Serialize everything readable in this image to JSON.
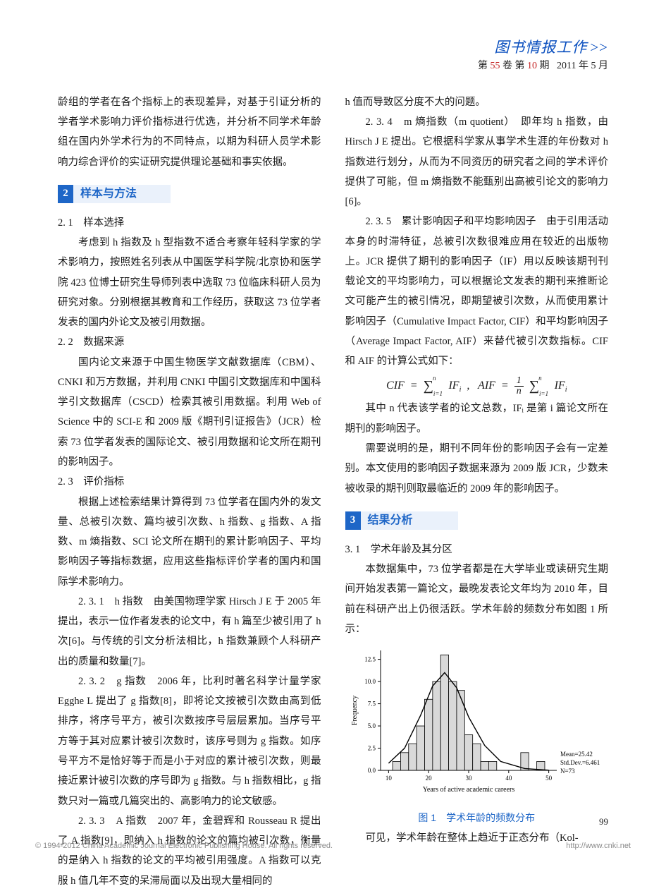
{
  "header": {
    "journal_title": "图书情报工作",
    "chevrons": ">>",
    "volume_label_pre": "第 ",
    "volume_num": "55",
    "volume_label_mid": " 卷  第 ",
    "issue_num": "10",
    "issue_label_post": " 期",
    "date": "2011 年 5 月"
  },
  "left": {
    "intro": "龄组的学者在各个指标上的表现差异，对基于引证分析的学者学术影响力评价指标进行优选，并分析不同学术年龄组在国内外学术行为的不同特点，以期为科研人员学术影响力综合评价的实证研究提供理论基础和事实依据。",
    "sec2_num": "2",
    "sec2_title": "样本与方法",
    "s21_head": "2. 1　样本选择",
    "s21_body": "考虑到 h 指数及 h 型指数不适合考察年轻科学家的学术影响力，按照姓名列表从中国医学科学院/北京协和医学院 423 位博士研究生导师列表中选取 73 位临床科研人员为研究对象。分别根据其教育和工作经历，获取这 73 位学者发表的国内外论文及被引用数据。",
    "s22_head": "2. 2　数据来源",
    "s22_body": "国内论文来源于中国生物医学文献数据库（CBM）、CNKI 和万方数据，并利用 CNKI 中国引文数据库和中国科学引文数据库（CSCD）检索其被引用数据。利用 Web of Science 中的 SCI-E 和 2009 版《期刊引证报告》（JCR）检索 73 位学者发表的国际论文、被引用数据和论文所在期刊的影响因子。",
    "s23_head": "2. 3　评价指标",
    "s23_body": "根据上述检索结果计算得到 73 位学者在国内外的发文量、总被引次数、篇均被引次数、h 指数、g 指数、A 指数、m 熵指数、SCI 论文所在期刊的累计影响因子、平均影响因子等指标数据，应用这些指标评价学者的国内和国际学术影响力。",
    "s231_head": "2. 3. 1　h 指数",
    "s231_body": "　由美国物理学家 Hirsch J E 于 2005 年提出，表示一位作者发表的论文中，有 h 篇至少被引用了 h 次[6]。与传统的引文分析法相比，h 指数兼顾个人科研产出的质量和数量[7]。",
    "s232_head": "2. 3. 2　g 指数",
    "s232_body": "　2006 年，比利时著名科学计量学家 Egghe L 提出了 g 指数[8]，即将论文按被引次数由高到低排序，将序号平方，被引次数按序号层层累加。当序号平方等于其对应累计被引次数时，该序号则为 g 指数。如序号平方不是恰好等于而是小于对应的累计被引次数，则最接近累计被引次数的序号即为 g 指数。与 h 指数相比，g 指数只对一篇或几篇突出的、高影响力的论文敏感。",
    "s233_head": "2. 3. 3　A 指数",
    "s233_body": "　2007 年，金碧辉和 Rousseau R 提出了 A 指数[9]，即纳入 h 指数的论文的篇均被引次数，衡量的是纳入 h 指数的论文的平均被引用强度。A 指数可以克服 h 值几年不变的呆滞局面以及出现大量相同的"
  },
  "right": {
    "top_line": "h 值而导致区分度不大的问题。",
    "s234_head": "2. 3. 4　m 熵指数（m quotient）",
    "s234_body": "　即年均 h 指数，由 Hirsch J E 提出。它根据科学家从事学术生涯的年份数对 h 指数进行划分，从而为不同资历的研究者之间的学术评价提供了可能，但 m 熵指数不能甄别出高被引论文的影响力[6]。",
    "s235_head": "2. 3. 5　累计影响因子和平均影响因子",
    "s235_body1": "　由于引用活动本身的时滞特征，总被引次数很难应用在较近的出版物上。JCR 提供了期刊的影响因子（IF）用以反映该期刊刊载论文的平均影响力，可以根据论文发表的期刊来推断论文可能产生的被引情况，即期望被引次数，从而使用累计影响因子（Cumulative Impact Factor, CIF）和平均影响因子（Average Impact Factor, AIF）来替代被引次数指标。CIF 和 AIF 的计算公式如下：",
    "s235_body2": "其中 n 代表该学者的论文总数，IFᵢ 是第 i 篇论文所在期刊的影响因子。",
    "s235_body3": "需要说明的是，期刊不同年份的影响因子会有一定差别。本文使用的影响因子数据来源为 2009 版 JCR，少数未被收录的期刊则取最临近的 2009 年的影响因子。",
    "sec3_num": "3",
    "sec3_title": "结果分析",
    "s31_head": "3. 1　学术年龄及其分区",
    "s31_body": "本数据集中，73 位学者都是在大学毕业或读研究生期间开始发表第一篇论文，最晚发表论文年均为 2010 年，目前在科研产出上仍很活跃。学术年龄的频数分布如图 1 所示：",
    "fig1_caption": "图 1　学术年龄的频数分布",
    "after_fig": "可见，学术年龄在整体上趋近于正态分布（Kol-"
  },
  "figure1": {
    "type": "histogram",
    "x_label": "Years of active academic careers",
    "y_label": "Frequency",
    "x_ticks": [
      10,
      20,
      30,
      40,
      50
    ],
    "y_ticks": [
      0.0,
      2.5,
      5.0,
      7.5,
      10.0,
      12.5
    ],
    "ylim": [
      0,
      13.5
    ],
    "xlim": [
      8,
      52
    ],
    "bins": [
      {
        "x": 11,
        "h": 1
      },
      {
        "x": 13,
        "h": 2
      },
      {
        "x": 15,
        "h": 3
      },
      {
        "x": 17,
        "h": 5
      },
      {
        "x": 19,
        "h": 8
      },
      {
        "x": 21,
        "h": 10
      },
      {
        "x": 23,
        "h": 13
      },
      {
        "x": 25,
        "h": 10
      },
      {
        "x": 27,
        "h": 9
      },
      {
        "x": 29,
        "h": 4
      },
      {
        "x": 31,
        "h": 3
      },
      {
        "x": 33,
        "h": 1
      },
      {
        "x": 35,
        "h": 1
      },
      {
        "x": 43,
        "h": 2
      },
      {
        "x": 47,
        "h": 1
      }
    ],
    "bin_width": 2,
    "bar_fill": "#d9d9d9",
    "bar_stroke": "#000000",
    "curve_stroke": "#000000",
    "axis_color": "#000000",
    "background": "#ffffff",
    "fontsize_axis": 9,
    "fontsize_label": 10,
    "annotations": [
      "Mean=25.42",
      "Std.Dev.=6.461",
      "N=73"
    ],
    "curve_points": [
      {
        "x": 10,
        "y": 0.8
      },
      {
        "x": 14,
        "y": 2.5
      },
      {
        "x": 18,
        "y": 6.2
      },
      {
        "x": 21,
        "y": 9.5
      },
      {
        "x": 24,
        "y": 11
      },
      {
        "x": 27,
        "y": 9.3
      },
      {
        "x": 30,
        "y": 6
      },
      {
        "x": 34,
        "y": 2.8
      },
      {
        "x": 38,
        "y": 1
      },
      {
        "x": 44,
        "y": 0.2
      },
      {
        "x": 50,
        "y": 0.02
      }
    ]
  },
  "page_number": "99",
  "footer": {
    "left": "© 1994-2012 China Academic Journal Electronic Publishing House. All rights reserved.",
    "right": "http://www.cnki.net"
  }
}
